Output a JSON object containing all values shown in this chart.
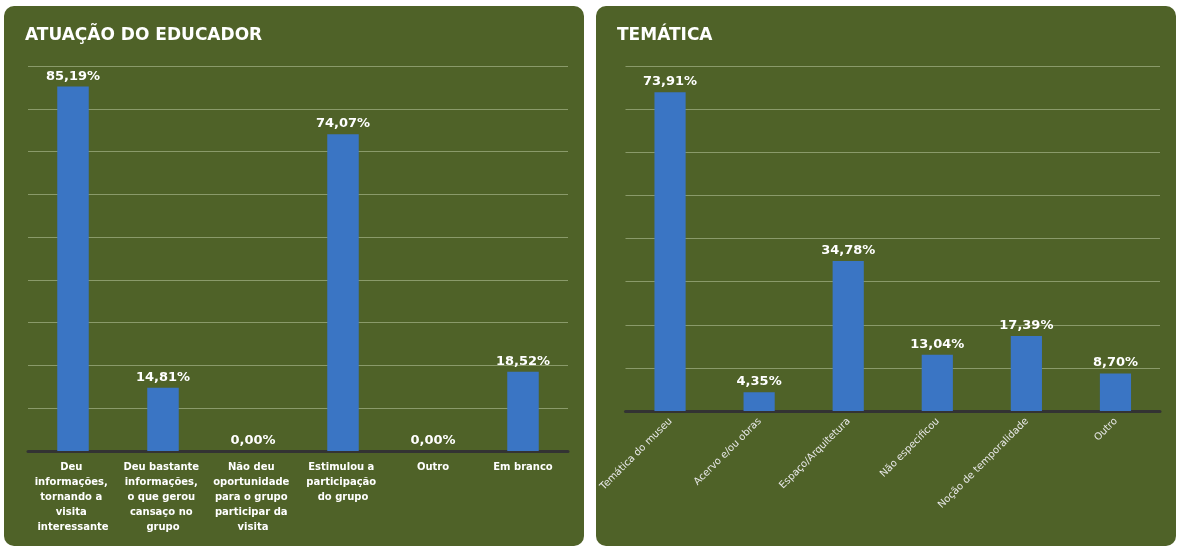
{
  "chart_data": [
    {
      "type": "bar",
      "title": "ATUAÇÃO DO EDUCADOR",
      "categories": [
        "Deu informações, tornando a visita interessante",
        "Deu bastante informações, o que gerou cansaço no grupo",
        "Não deu oportunidade para o grupo participar da visita",
        "Estimulou a participação do grupo",
        "Outro",
        "Em branco"
      ],
      "values": [
        85.19,
        14.81,
        0,
        74.07,
        0,
        18.52
      ],
      "value_labels": [
        "85,19%",
        "14,81%",
        "0,00%",
        "74,07%",
        "0,00%",
        "18,52%"
      ],
      "color": "#3a75c4",
      "grid": "y",
      "ylim": [
        0,
        90
      ],
      "yticks": [
        {
          "value": 10,
          "label": null
        },
        {
          "value": 20,
          "label": null
        },
        {
          "value": 30,
          "label": null
        },
        {
          "value": 40,
          "label": null
        },
        {
          "value": 50,
          "label": null
        },
        {
          "value": 60,
          "label": null
        },
        {
          "value": 70,
          "label": null
        },
        {
          "value": 80,
          "label": null
        },
        {
          "value": 90,
          "label": null
        }
      ]
    },
    {
      "type": "bar",
      "title": "TEMÁTICA",
      "categories": [
        "Temática do museu",
        "Acervo e/ou obras",
        "Espaço/Arquitetura",
        "Não especificou",
        "Noção de temporalidade",
        "Outro"
      ],
      "values": [
        73.91,
        4.35,
        34.78,
        13.04,
        17.39,
        8.7
      ],
      "value_labels": [
        "73,91%",
        "4,35%",
        "34,78%",
        "13,04%",
        "17,39%",
        "8,70%"
      ],
      "color": "#3a75c4",
      "grid": "y",
      "ylim": [
        0,
        80
      ],
      "yticks": [
        {
          "value": 10,
          "label": null
        },
        {
          "value": 20,
          "label": null
        },
        {
          "value": 30,
          "label": null
        },
        {
          "value": 40,
          "label": null
        },
        {
          "value": 50,
          "label": null
        },
        {
          "value": 60,
          "label": null
        },
        {
          "value": 70,
          "label": null
        },
        {
          "value": 80,
          "label": null
        }
      ]
    }
  ]
}
